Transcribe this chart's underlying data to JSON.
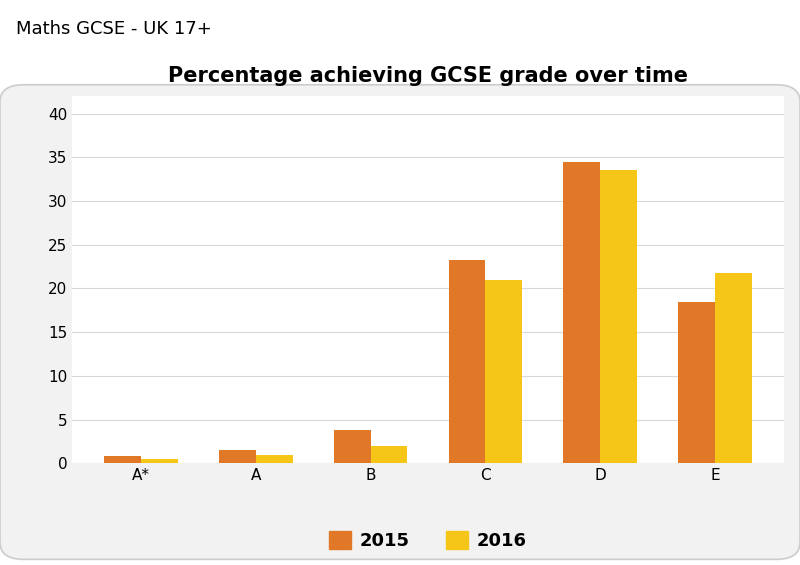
{
  "title": "Percentage achieving GCSE grade over time",
  "suptitle": "Maths GCSE - UK 17+",
  "categories": [
    "A*",
    "A",
    "B",
    "C",
    "D",
    "E"
  ],
  "values_2015": [
    0.8,
    1.5,
    3.8,
    23.3,
    34.5,
    18.5
  ],
  "values_2016": [
    0.5,
    0.9,
    2.0,
    21.0,
    33.5,
    21.8
  ],
  "color_2015": "#E07828",
  "color_2016": "#F5C518",
  "ylim": [
    0,
    42
  ],
  "yticks": [
    0,
    5,
    10,
    15,
    20,
    25,
    30,
    35,
    40
  ],
  "background_color": "#f2f2f2",
  "chart_bg": "#ffffff",
  "bar_width": 0.32,
  "legend_labels": [
    "2015",
    "2016"
  ],
  "title_fontsize": 15,
  "suptitle_fontsize": 13,
  "tick_fontsize": 11,
  "legend_fontsize": 13
}
